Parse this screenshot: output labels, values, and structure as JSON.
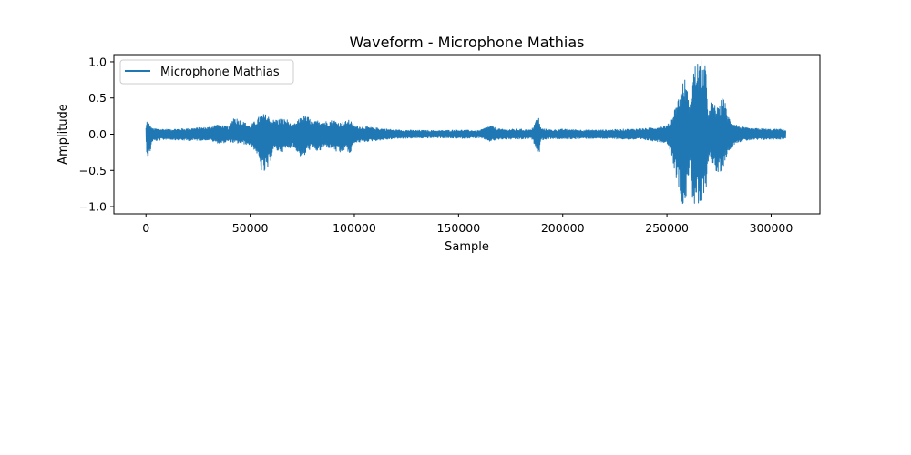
{
  "chart_data": {
    "type": "line",
    "title": "Waveform - Microphone Mathias",
    "xlabel": "Sample",
    "ylabel": "Amplitude",
    "xlim": [
      -15400,
      323400
    ],
    "ylim": [
      -1.1,
      1.1
    ],
    "xticks": [
      0,
      50000,
      100000,
      150000,
      200000,
      250000,
      300000
    ],
    "xtick_labels": [
      "0",
      "50000",
      "100000",
      "150000",
      "200000",
      "250000",
      "300000"
    ],
    "yticks": [
      1.0,
      0.5,
      0.0,
      -0.5,
      -1.0
    ],
    "ytick_labels": [
      "1.0",
      "0.5",
      "0.0",
      "−0.5",
      "−1.0"
    ],
    "grid": false,
    "legend": "top-left",
    "series": [
      {
        "name": "Microphone Mathias",
        "color": "#1f77b4",
        "x_range": [
          0,
          307000
        ],
        "envelope": {
          "x": [
            0,
            500,
            1500,
            3000,
            10000,
            20000,
            30000,
            34000,
            36000,
            40000,
            42000,
            50000,
            53000,
            55000,
            57000,
            59000,
            61000,
            65000,
            68000,
            70000,
            72000,
            75000,
            78000,
            80000,
            83000,
            86000,
            90000,
            93000,
            96000,
            98000,
            100000,
            110000,
            120000,
            140000,
            150000,
            160000,
            165000,
            170000,
            180000,
            185000,
            187500,
            188500,
            189500,
            195000,
            200000,
            210000,
            220000,
            230000,
            240000,
            245000,
            250000,
            252000,
            254000,
            256000,
            257500,
            259000,
            261000,
            262500,
            264000,
            265500,
            267000,
            268500,
            270000,
            272000,
            273500,
            275000,
            277000,
            279000,
            281000,
            283000,
            286000,
            290000,
            295000,
            300000,
            305000,
            307000
          ],
          "max": [
            0.1,
            0.2,
            0.15,
            0.08,
            0.07,
            0.08,
            0.1,
            0.14,
            0.13,
            0.1,
            0.25,
            0.12,
            0.2,
            0.27,
            0.28,
            0.25,
            0.2,
            0.22,
            0.2,
            0.12,
            0.16,
            0.26,
            0.24,
            0.16,
            0.2,
            0.18,
            0.2,
            0.16,
            0.18,
            0.2,
            0.12,
            0.09,
            0.06,
            0.05,
            0.06,
            0.05,
            0.12,
            0.07,
            0.07,
            0.06,
            0.22,
            0.23,
            0.08,
            0.06,
            0.07,
            0.06,
            0.06,
            0.07,
            0.08,
            0.1,
            0.12,
            0.2,
            0.38,
            0.55,
            0.72,
            0.78,
            0.35,
            0.9,
            1.0,
            1.03,
            1.02,
            0.95,
            0.3,
            0.48,
            0.38,
            0.35,
            0.58,
            0.28,
            0.18,
            0.14,
            0.1,
            0.08,
            0.08,
            0.07,
            0.07,
            0.06
          ],
          "min": [
            -0.1,
            -0.3,
            -0.33,
            -0.1,
            -0.07,
            -0.09,
            -0.08,
            -0.12,
            -0.13,
            -0.1,
            -0.12,
            -0.15,
            -0.25,
            -0.5,
            -0.55,
            -0.48,
            -0.22,
            -0.25,
            -0.2,
            -0.18,
            -0.22,
            -0.35,
            -0.22,
            -0.2,
            -0.25,
            -0.17,
            -0.22,
            -0.28,
            -0.2,
            -0.3,
            -0.12,
            -0.09,
            -0.06,
            -0.05,
            -0.06,
            -0.05,
            -0.1,
            -0.07,
            -0.07,
            -0.06,
            -0.2,
            -0.31,
            -0.08,
            -0.06,
            -0.07,
            -0.06,
            -0.06,
            -0.07,
            -0.08,
            -0.1,
            -0.12,
            -0.25,
            -0.55,
            -0.8,
            -0.98,
            -0.95,
            -0.4,
            -1.0,
            -1.02,
            -1.03,
            -1.0,
            -0.88,
            -0.3,
            -0.4,
            -0.55,
            -0.58,
            -0.45,
            -0.28,
            -0.18,
            -0.12,
            -0.1,
            -0.08,
            -0.08,
            -0.07,
            -0.07,
            -0.06
          ]
        }
      }
    ]
  }
}
